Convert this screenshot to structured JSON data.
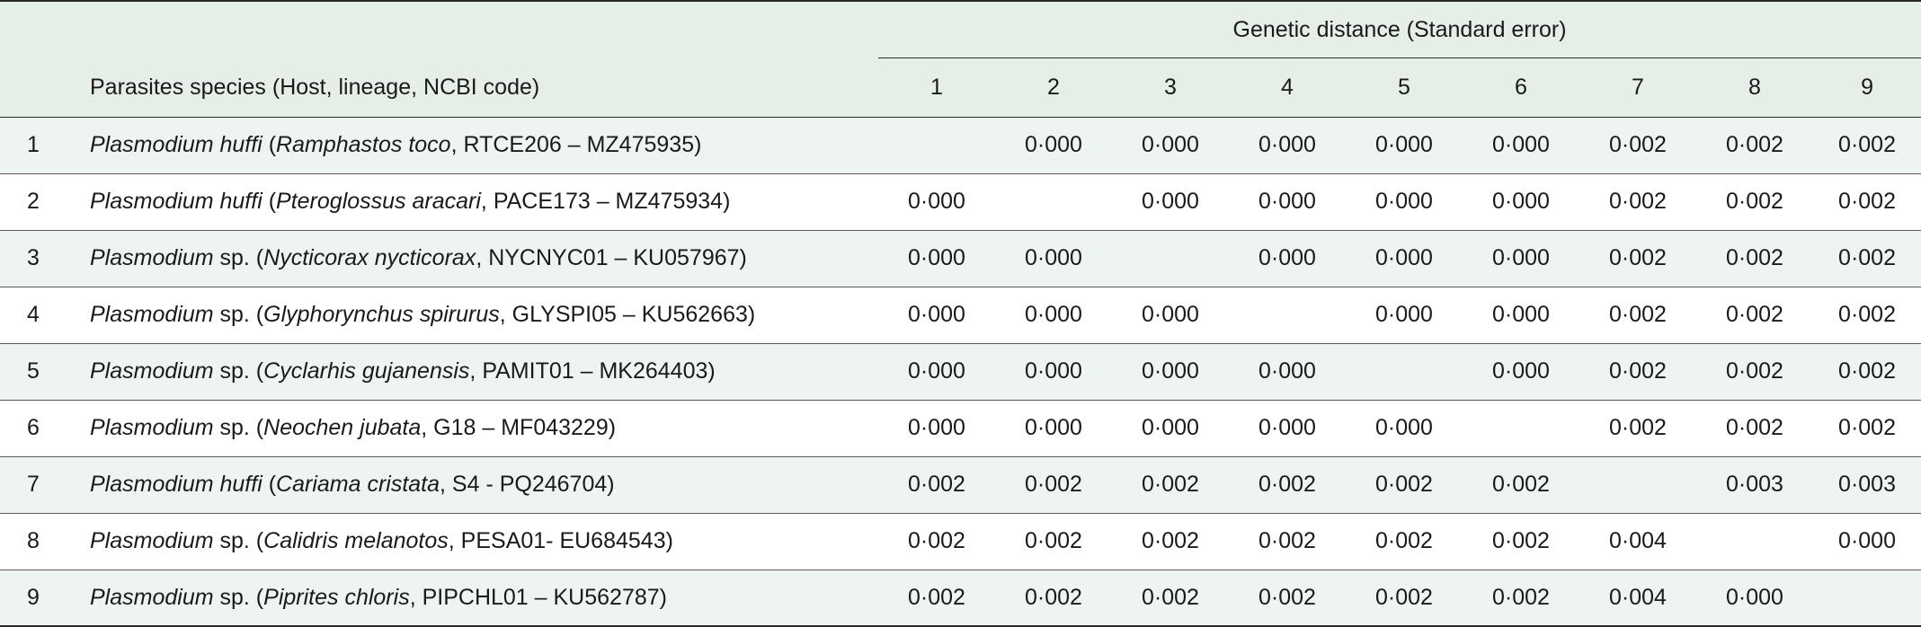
{
  "header": {
    "group_title": "Genetic distance (Standard error)",
    "species_col": "Parasites species (Host, lineage, NCBI code)",
    "columns": [
      "1",
      "2",
      "3",
      "4",
      "5",
      "6",
      "7",
      "8",
      "9"
    ]
  },
  "rows": [
    {
      "index": "1",
      "genus": "Plasmodium huffi",
      "genus_suffix": "",
      "host": "Ramphastos toco",
      "rest": ", RTCE206 – MZ475935)",
      "bold": true,
      "values": [
        "",
        "0·000",
        "0·000",
        "0·000",
        "0·000",
        "0·000",
        "0·002",
        "0·002",
        "0·002"
      ]
    },
    {
      "index": "2",
      "genus": "Plasmodium huffi",
      "genus_suffix": "",
      "host": "Pteroglossus aracari",
      "rest": ", PACE173 – MZ475934)",
      "bold": true,
      "values": [
        "0·000",
        "",
        "0·000",
        "0·000",
        "0·000",
        "0·000",
        "0·002",
        "0·002",
        "0·002"
      ]
    },
    {
      "index": "3",
      "genus": "Plasmodium",
      "genus_suffix": " sp.",
      "host": "Nycticorax nycticorax",
      "rest": ", NYCNYC01 – KU057967)",
      "bold": false,
      "values": [
        "0·000",
        "0·000",
        "",
        "0·000",
        "0·000",
        "0·000",
        "0·002",
        "0·002",
        "0·002"
      ]
    },
    {
      "index": "4",
      "genus": "Plasmodium",
      "genus_suffix": " sp.",
      "host": "Glyphorynchus spirurus",
      "rest": ", GLYSPI05 – KU562663)",
      "bold": false,
      "values": [
        "0·000",
        "0·000",
        "0·000",
        "",
        "0·000",
        "0·000",
        "0·002",
        "0·002",
        "0·002"
      ]
    },
    {
      "index": "5",
      "genus": "Plasmodium",
      "genus_suffix": " sp.",
      "host": "Cyclarhis gujanensis",
      "rest": ", PAMIT01 – MK264403)",
      "bold": false,
      "values": [
        "0·000",
        "0·000",
        "0·000",
        "0·000",
        "",
        "0·000",
        "0·002",
        "0·002",
        "0·002"
      ]
    },
    {
      "index": "6",
      "genus": "Plasmodium",
      "genus_suffix": " sp.",
      "host": "Neochen jubata",
      "rest": ", G18 – MF043229)",
      "bold": false,
      "values": [
        "0·000",
        "0·000",
        "0·000",
        "0·000",
        "0·000",
        "",
        "0·002",
        "0·002",
        "0·002"
      ]
    },
    {
      "index": "7",
      "genus": "Plasmodium huffi",
      "genus_suffix": "",
      "host": "Cariama cristata",
      "rest": ", S4 - PQ246704)",
      "bold": true,
      "values": [
        "0·002",
        "0·002",
        "0·002",
        "0·002",
        "0·002",
        "0·002",
        "",
        "0·003",
        "0·003"
      ],
      "bold_values": [
        true,
        true,
        true,
        true,
        true,
        true,
        false,
        false,
        false
      ]
    },
    {
      "index": "8",
      "genus": "Plasmodium",
      "genus_suffix": " sp.",
      "host": "Calidris melanotos",
      "rest": ", PESA01- EU684543)",
      "bold": false,
      "values": [
        "0·002",
        "0·002",
        "0·002",
        "0·002",
        "0·002",
        "0·002",
        "0·004",
        "",
        "0·000"
      ]
    },
    {
      "index": "9",
      "genus": "Plasmodium",
      "genus_suffix": " sp.",
      "host": "Piprites chloris",
      "rest": ", PIPCHL01 – KU562787)",
      "bold": false,
      "values": [
        "0·002",
        "0·002",
        "0·002",
        "0·002",
        "0·002",
        "0·002",
        "0·004",
        "0·000",
        ""
      ]
    }
  ]
}
